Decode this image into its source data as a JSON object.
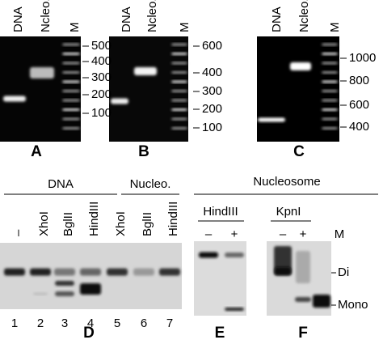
{
  "panels": [
    {
      "label": "A",
      "lanes": [
        "DNA",
        "Ncleo.",
        "M"
      ],
      "markers": [
        500,
        400,
        300,
        200,
        100
      ]
    },
    {
      "label": "B",
      "lanes": [
        "DNA",
        "Ncleo.",
        "M"
      ],
      "markers": [
        600,
        400,
        300,
        200,
        100
      ]
    },
    {
      "label": "C",
      "lanes": [
        "DNA",
        "Ncleo.",
        "M"
      ],
      "markers": [
        1000,
        800,
        600,
        400
      ]
    },
    {
      "label": "D",
      "groups": [
        "DNA",
        "Nucleo."
      ],
      "lanes": [
        "–",
        "XhoI",
        "BglII",
        "HindIII",
        "XhoI",
        "BglII",
        "HindIII"
      ],
      "lane_numbers": [
        "1",
        "2",
        "3",
        "4",
        "5",
        "6",
        "7"
      ]
    },
    {
      "label": "E",
      "enzyme": "HindIII",
      "lanes": [
        "–",
        "+"
      ]
    },
    {
      "label": "F",
      "enzyme": "KpnI",
      "lanes": [
        "–",
        "+",
        "M"
      ],
      "band_labels": [
        "Di",
        "Mono"
      ]
    }
  ],
  "nucleosome_header": "Nucleosome"
}
